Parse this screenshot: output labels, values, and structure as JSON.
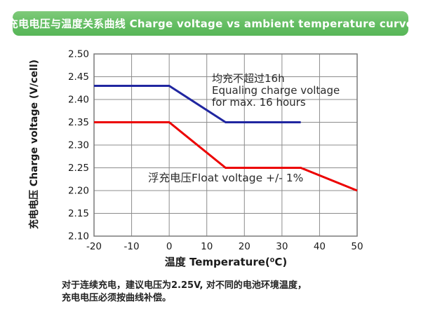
{
  "header": {
    "title": "充电电压与温度关系曲线 Charge voltage vs ambient temperature curve"
  },
  "chart_data": {
    "type": "line",
    "title": "",
    "xlabel": "温度 Temperature(⁰C)",
    "ylabel": "充电电压 Charge voltage (V/cell)",
    "xlim": [
      -20,
      50
    ],
    "ylim": [
      2.1,
      2.5
    ],
    "grid": true,
    "x_ticks": [
      "-20",
      "-10",
      "0",
      "10",
      "20",
      "30",
      "40",
      "50"
    ],
    "y_ticks": [
      "2.10",
      "2.15",
      "2.20",
      "2.25",
      "2.30",
      "2.35",
      "2.40",
      "2.45",
      "2.50"
    ],
    "series": [
      {
        "name": "equalizing-charge-voltage",
        "color": "#2026a0",
        "points": [
          [
            -20,
            2.43
          ],
          [
            0,
            2.43
          ],
          [
            15,
            2.35
          ],
          [
            35,
            2.35
          ]
        ]
      },
      {
        "name": "float-voltage",
        "color": "#ec0000",
        "points": [
          [
            -20,
            2.35
          ],
          [
            0,
            2.35
          ],
          [
            15,
            2.25
          ],
          [
            35,
            2.25
          ],
          [
            50,
            2.2
          ]
        ]
      }
    ],
    "annotations": [
      {
        "name": "equalizing-note",
        "lines": [
          "均充不超过16h",
          "Equaling charge voltage",
          "for max. 16 hours"
        ]
      },
      {
        "name": "float-note",
        "lines": [
          "浮充电压Float voltage +/- 1%"
        ]
      }
    ]
  },
  "footnote": {
    "line1": "对于连续充电，建议电压为2.25V, 对不同的电池环境温度，",
    "line2": "充电电压必须按曲线补偿。"
  },
  "colors": {
    "header_green_top": "#7fca7a",
    "header_green_bottom": "#58b658",
    "grid": "#8c8c8c",
    "border": "#7a7a7a",
    "blue_line": "#2026a0",
    "red_line": "#ec0000",
    "tick_text": "#1a1a1a"
  }
}
